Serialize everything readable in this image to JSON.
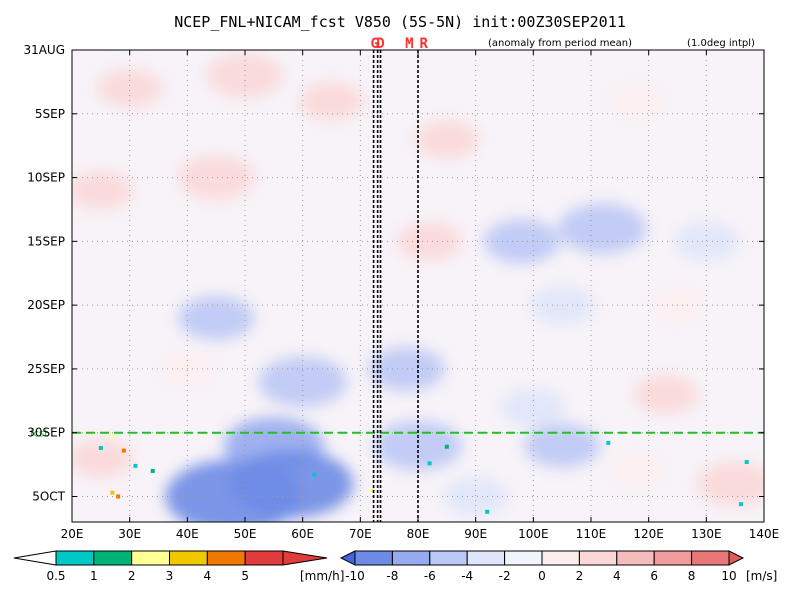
{
  "chart_data": {
    "type": "heatmap",
    "title": "NCEP_FNL+NICAM_fcst V850 (5S-5N) init:00Z30SEP2011",
    "subtitle_left": "(anomaly from period mean)",
    "subtitle_right": "(1.0deg intpl)",
    "x_ticks": [
      "20E",
      "30E",
      "40E",
      "50E",
      "60E",
      "70E",
      "80E",
      "90E",
      "100E",
      "110E",
      "120E",
      "130E",
      "140E"
    ],
    "x_tick_values": [
      20,
      30,
      40,
      50,
      60,
      70,
      80,
      90,
      100,
      110,
      120,
      130,
      140
    ],
    "xlim": [
      20,
      140
    ],
    "y_ticks": [
      "31AUG",
      "5SEP",
      "10SEP",
      "15SEP",
      "20SEP",
      "25SEP",
      "30SEP",
      "5OCT"
    ],
    "y_tick_values": [
      0,
      5,
      10,
      15,
      20,
      25,
      30,
      35
    ],
    "ylim": [
      0,
      37
    ],
    "forecast_start_label": "fcst",
    "forecast_start_day": 30,
    "markers": [
      {
        "label": "G",
        "lon": 72.5
      },
      {
        "label": "D",
        "lon": 73.5
      },
      {
        "label": "M",
        "lon": 78.5
      },
      {
        "label": "R",
        "lon": 81
      }
    ],
    "marker_lines_lon": [
      72.3,
      73.0,
      73.5,
      80.0
    ],
    "precip_colorbar": {
      "levels": [
        "0.5",
        "1",
        "2",
        "3",
        "4",
        "5"
      ],
      "unit": "[mm/h]",
      "colors": [
        "#ffffff",
        "#00c8c8",
        "#00b478",
        "#ffff96",
        "#f0c800",
        "#f07800",
        "#e03c3c"
      ]
    },
    "wind_colorbar": {
      "levels": [
        "-10",
        "-8",
        "-6",
        "-4",
        "-2",
        "0",
        "2",
        "4",
        "6",
        "8",
        "10"
      ],
      "unit": "[m/s]",
      "colors": [
        "#4664dc",
        "#6e8ce6",
        "#96aaf0",
        "#bcc8f5",
        "#dfe5fa",
        "#f0f4fd",
        "#fdeeee",
        "#fbd8d8",
        "#f6bcbc",
        "#f09c9c",
        "#e87878",
        "#e05a5a"
      ]
    },
    "anomaly_features": [
      {
        "lon": 30,
        "day": 3,
        "value": 3
      },
      {
        "lon": 50,
        "day": 2,
        "value": 4
      },
      {
        "lon": 65,
        "day": 4,
        "value": 3
      },
      {
        "lon": 85,
        "day": 7,
        "value": 3
      },
      {
        "lon": 118,
        "day": 4,
        "value": 2
      },
      {
        "lon": 45,
        "day": 10,
        "value": 4
      },
      {
        "lon": 25,
        "day": 11,
        "value": 3
      },
      {
        "lon": 98,
        "day": 15,
        "value": -4
      },
      {
        "lon": 112,
        "day": 14,
        "value": -5
      },
      {
        "lon": 130,
        "day": 15,
        "value": -3
      },
      {
        "lon": 82,
        "day": 15,
        "value": 3
      },
      {
        "lon": 45,
        "day": 21,
        "value": -4
      },
      {
        "lon": 105,
        "day": 20,
        "value": -3
      },
      {
        "lon": 125,
        "day": 20,
        "value": 2
      },
      {
        "lon": 60,
        "day": 26,
        "value": -5
      },
      {
        "lon": 78,
        "day": 25,
        "value": -4
      },
      {
        "lon": 40,
        "day": 25,
        "value": 2
      },
      {
        "lon": 123,
        "day": 27,
        "value": 3
      },
      {
        "lon": 100,
        "day": 28,
        "value": -3
      },
      {
        "lon": 55,
        "day": 31,
        "value": -6
      },
      {
        "lon": 80,
        "day": 31,
        "value": -5
      },
      {
        "lon": 105,
        "day": 31,
        "value": -4
      },
      {
        "lon": 48,
        "day": 35,
        "value": -9
      },
      {
        "lon": 58,
        "day": 34,
        "value": -8
      },
      {
        "lon": 25,
        "day": 32,
        "value": 3
      },
      {
        "lon": 135,
        "day": 34,
        "value": 4
      },
      {
        "lon": 118,
        "day": 33,
        "value": 2
      },
      {
        "lon": 90,
        "day": 35,
        "value": -3
      }
    ],
    "precip_dots": [
      {
        "lon": 27,
        "day": 30.3,
        "value": 3
      },
      {
        "lon": 25,
        "day": 31.2,
        "value": 1
      },
      {
        "lon": 29,
        "day": 31.4,
        "value": 5
      },
      {
        "lon": 31,
        "day": 32.6,
        "value": 1
      },
      {
        "lon": 34,
        "day": 33.0,
        "value": 2
      },
      {
        "lon": 27,
        "day": 34.7,
        "value": 4
      },
      {
        "lon": 28,
        "day": 35.0,
        "value": 5
      },
      {
        "lon": 85,
        "day": 31.1,
        "value": 2
      },
      {
        "lon": 82,
        "day": 32.4,
        "value": 1
      },
      {
        "lon": 62,
        "day": 33.3,
        "value": 1
      },
      {
        "lon": 72,
        "day": 34.5,
        "value": 3
      },
      {
        "lon": 92,
        "day": 36.2,
        "value": 1
      },
      {
        "lon": 113,
        "day": 30.8,
        "value": 1
      },
      {
        "lon": 137,
        "day": 32.3,
        "value": 1
      },
      {
        "lon": 136,
        "day": 35.6,
        "value": 1
      }
    ]
  }
}
